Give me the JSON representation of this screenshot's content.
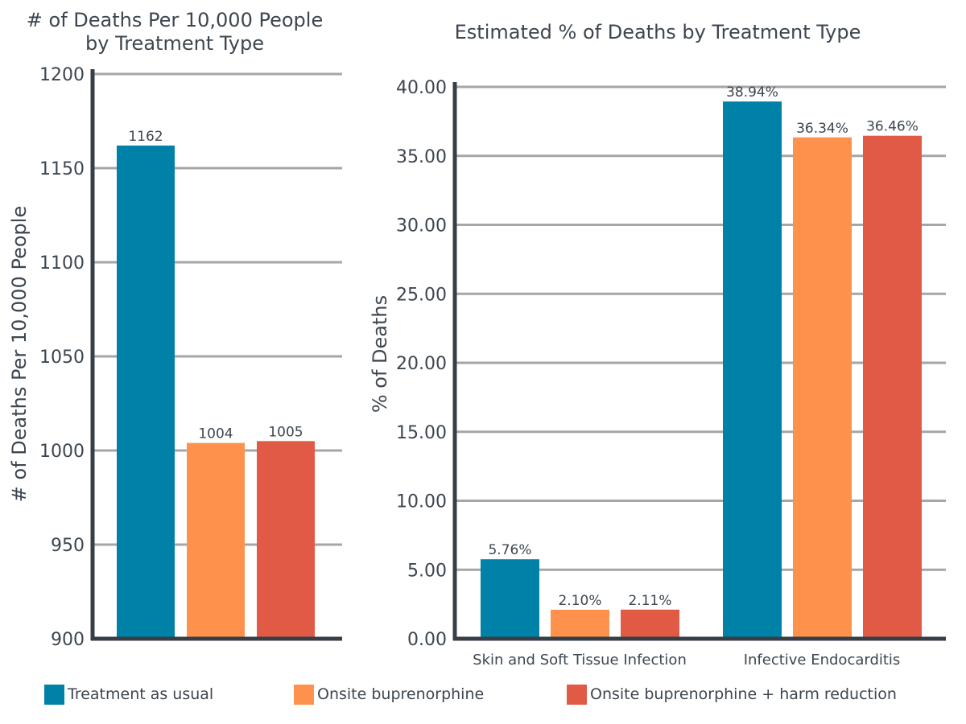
{
  "colors": {
    "treatment_as_usual": "#0081a7",
    "onsite_buprenorphine": "#fe914b",
    "onsite_buprenorphine_harm_reduction": "#e05a45",
    "grid": "#a6a6a6",
    "axis": "#363e46",
    "text": "#3d4650"
  },
  "legend": {
    "items": [
      {
        "label": "Treatment as usual",
        "color": "#0081a7"
      },
      {
        "label": "Onsite buprenorphine",
        "color": "#fe914b"
      },
      {
        "label": "Onsite buprenorphine + harm reduction",
        "color": "#e05a45"
      }
    ]
  },
  "chart_data": [
    {
      "type": "bar",
      "title_lines": [
        "# of Deaths Per 10,000 People",
        "by Treatment Type"
      ],
      "xlabel": "",
      "ylabel": "# of Deaths Per 10,000 People",
      "ylim": [
        900,
        1200
      ],
      "yticks": [
        900,
        950,
        1000,
        1050,
        1100,
        1150,
        1200
      ],
      "ytick_labels": [
        "900",
        "950",
        "1000",
        "1050",
        "1100",
        "1150",
        "1200"
      ],
      "categories": [
        ""
      ],
      "series": [
        {
          "name": "Treatment as usual",
          "color": "#0081a7",
          "values": [
            1162
          ],
          "value_labels": [
            "1162"
          ]
        },
        {
          "name": "Onsite buprenorphine",
          "color": "#fe914b",
          "values": [
            1004
          ],
          "value_labels": [
            "1004"
          ]
        },
        {
          "name": "Onsite buprenorphine + harm reduction",
          "color": "#e05a45",
          "values": [
            1005
          ],
          "value_labels": [
            "1005"
          ]
        }
      ],
      "grid": true,
      "legend": "bottom"
    },
    {
      "type": "bar",
      "title_lines": [
        "Estimated % of Deaths by Treatment Type"
      ],
      "xlabel": "",
      "ylabel": "% of Deaths",
      "ylim": [
        0,
        40
      ],
      "yticks": [
        0,
        5,
        10,
        15,
        20,
        25,
        30,
        35,
        40
      ],
      "ytick_labels": [
        "0.00",
        "5.00",
        "10.00",
        "15.00",
        "20.00",
        "25.00",
        "30.00",
        "35.00",
        "40.00"
      ],
      "categories": [
        "Skin and Soft Tissue Infection",
        "Infective Endocarditis"
      ],
      "series": [
        {
          "name": "Treatment as usual",
          "color": "#0081a7",
          "values": [
            5.76,
            38.94
          ],
          "value_labels": [
            "5.76%",
            "38.94%"
          ]
        },
        {
          "name": "Onsite buprenorphine",
          "color": "#fe914b",
          "values": [
            2.1,
            36.34
          ],
          "value_labels": [
            "2.10%",
            "36.34%"
          ]
        },
        {
          "name": "Onsite buprenorphine + harm reduction",
          "color": "#e05a45",
          "values": [
            2.11,
            36.46
          ],
          "value_labels": [
            "2.11%",
            "36.46%"
          ]
        }
      ],
      "grid": true,
      "legend": "bottom"
    }
  ]
}
